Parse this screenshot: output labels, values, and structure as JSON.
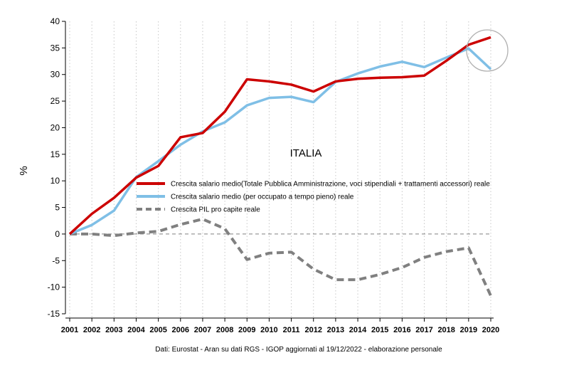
{
  "chart_data": {
    "type": "line",
    "title": "ITALIA",
    "xlabel": "",
    "ylabel": "%",
    "source_note": "Dati: Eurostat - Aran su dati RGS - IGOP aggiornati al 19/12/2022 - elaborazione personale",
    "x": [
      2001,
      2002,
      2003,
      2004,
      2005,
      2006,
      2007,
      2008,
      2009,
      2010,
      2011,
      2012,
      2013,
      2014,
      2015,
      2016,
      2017,
      2018,
      2019,
      2020
    ],
    "xlim": [
      2001,
      2020
    ],
    "ylim": [
      -15,
      40
    ],
    "yticks": [
      40,
      35,
      30,
      25,
      20,
      15,
      10,
      5,
      0,
      -5,
      -10,
      -15
    ],
    "grid": "vertical dotted",
    "series": [
      {
        "name": "Crescita salario medio(Totale Pubblica Amministrazione, voci stipendiali + trattamenti accessori) reale",
        "color": "#cc0000",
        "style": "solid",
        "values": [
          0,
          3.8,
          6.8,
          10.6,
          12.8,
          18.2,
          19.0,
          23.0,
          29.1,
          28.7,
          28.1,
          26.8,
          28.7,
          29.2,
          29.4,
          29.5,
          29.8,
          32.6,
          35.6,
          37.0
        ]
      },
      {
        "name": "Crescita salario medio (per occupato a tempo pieno) reale",
        "color": "#7fbfe6",
        "style": "solid",
        "values": [
          0,
          1.7,
          4.4,
          10.7,
          13.7,
          16.8,
          19.3,
          21.0,
          24.2,
          25.6,
          25.8,
          24.8,
          28.6,
          30.2,
          31.5,
          32.4,
          31.4,
          33.2,
          34.9,
          31.0
        ]
      },
      {
        "name": "Crescita PIL pro capite reale",
        "color": "#808080",
        "style": "dashed",
        "values": [
          0,
          0.0,
          -0.3,
          0.2,
          0.5,
          1.8,
          2.8,
          1.0,
          -4.8,
          -3.6,
          -3.4,
          -6.6,
          -8.6,
          -8.6,
          -7.6,
          -6.3,
          -4.4,
          -3.3,
          -2.6,
          -11.6
        ]
      }
    ]
  }
}
